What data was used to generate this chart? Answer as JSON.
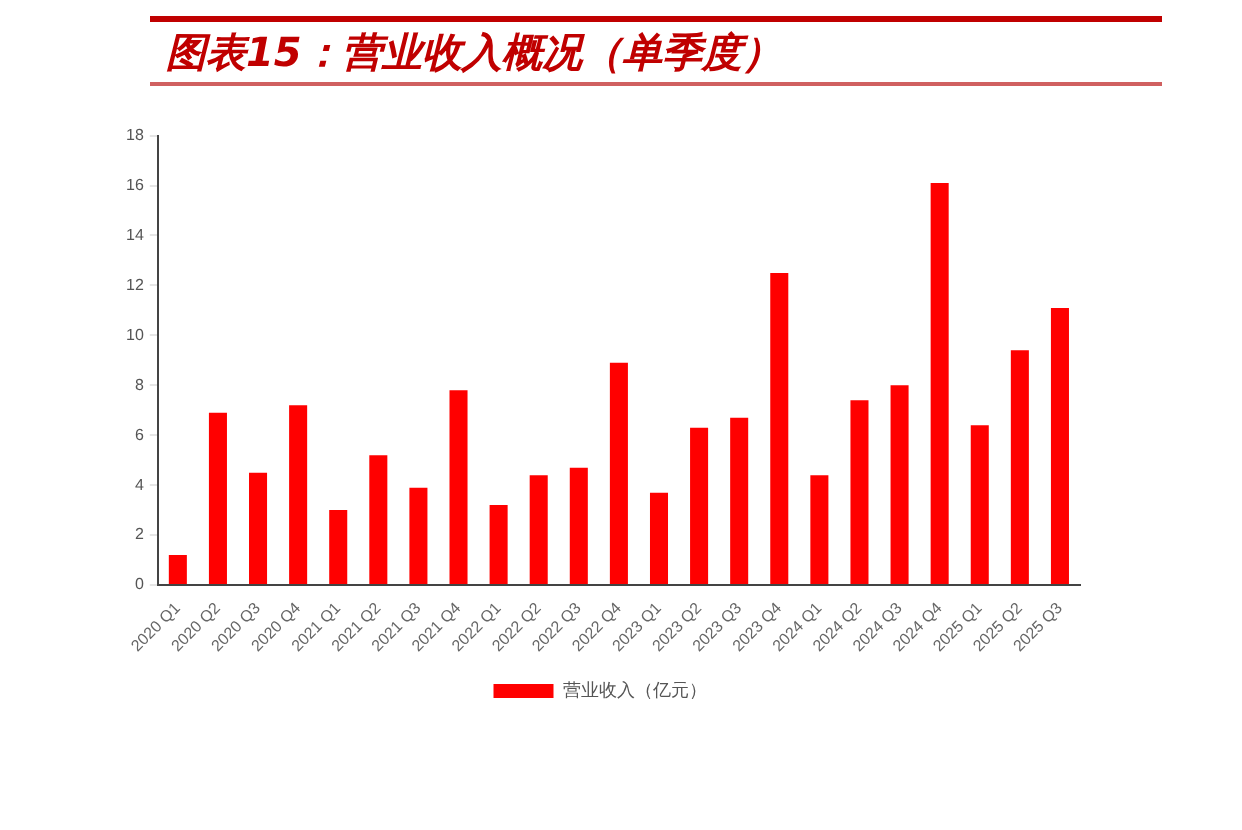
{
  "chart_data": {
    "type": "bar",
    "title": "图表15：营业收入概况（单季度）",
    "categories": [
      "2020 Q1",
      "2020 Q2",
      "2020 Q3",
      "2020 Q4",
      "2021 Q1",
      "2021 Q2",
      "2021 Q3",
      "2021 Q4",
      "2022 Q1",
      "2022 Q2",
      "2022 Q3",
      "2022 Q4",
      "2023 Q1",
      "2023 Q2",
      "2023 Q3",
      "2023 Q4",
      "2024 Q1",
      "2024 Q2",
      "2024 Q3",
      "2024 Q4",
      "2025 Q1",
      "2025 Q2",
      "2025 Q3"
    ],
    "series": [
      {
        "name": "营业收入（亿元）",
        "color": "#ff0000",
        "values": [
          1.2,
          6.9,
          4.5,
          7.2,
          3.0,
          5.2,
          3.9,
          7.8,
          3.2,
          4.4,
          4.7,
          8.9,
          3.7,
          6.3,
          6.7,
          12.5,
          4.4,
          7.4,
          8.0,
          16.1,
          6.4,
          9.4,
          11.1
        ]
      }
    ],
    "ylim": [
      0,
      18
    ],
    "yticks": [
      0,
      2,
      4,
      6,
      8,
      10,
      12,
      14,
      16,
      18
    ],
    "grid": false,
    "legend": "bottom"
  }
}
